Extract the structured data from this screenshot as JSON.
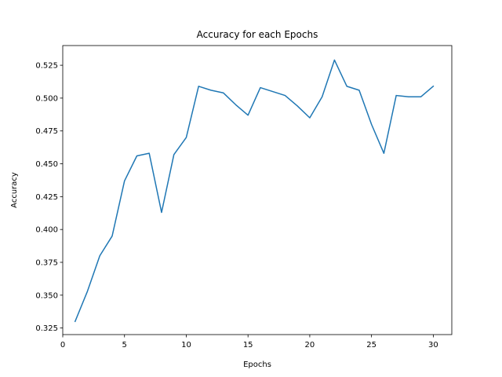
{
  "chart_data": {
    "type": "line",
    "title": "Accuracy for each Epochs",
    "xlabel": "Epochs",
    "ylabel": "Accuracy",
    "xlim": [
      0,
      31.5
    ],
    "ylim": [
      0.32,
      0.54
    ],
    "xticks": [
      0,
      5,
      10,
      15,
      20,
      25,
      30
    ],
    "xtick_labels": [
      "0",
      "5",
      "10",
      "15",
      "20",
      "25",
      "30"
    ],
    "yticks": [
      0.325,
      0.35,
      0.375,
      0.4,
      0.425,
      0.45,
      0.475,
      0.5,
      0.525
    ],
    "ytick_labels": [
      "0.325",
      "0.350",
      "0.375",
      "0.400",
      "0.425",
      "0.450",
      "0.475",
      "0.500",
      "0.525"
    ],
    "grid": false,
    "color": "#1f77b4",
    "x": [
      1,
      2,
      3,
      4,
      5,
      6,
      7,
      8,
      9,
      10,
      11,
      12,
      13,
      14,
      15,
      16,
      17,
      18,
      19,
      20,
      21,
      22,
      23,
      24,
      25,
      26,
      27,
      28,
      29,
      30
    ],
    "values": [
      0.33,
      0.353,
      0.38,
      0.395,
      0.437,
      0.456,
      0.458,
      0.413,
      0.457,
      0.47,
      0.509,
      0.506,
      0.504,
      0.495,
      0.487,
      0.508,
      0.505,
      0.502,
      0.494,
      0.485,
      0.501,
      0.529,
      0.509,
      0.506,
      0.48,
      0.458,
      0.502,
      0.501,
      0.501,
      0.509
    ]
  }
}
